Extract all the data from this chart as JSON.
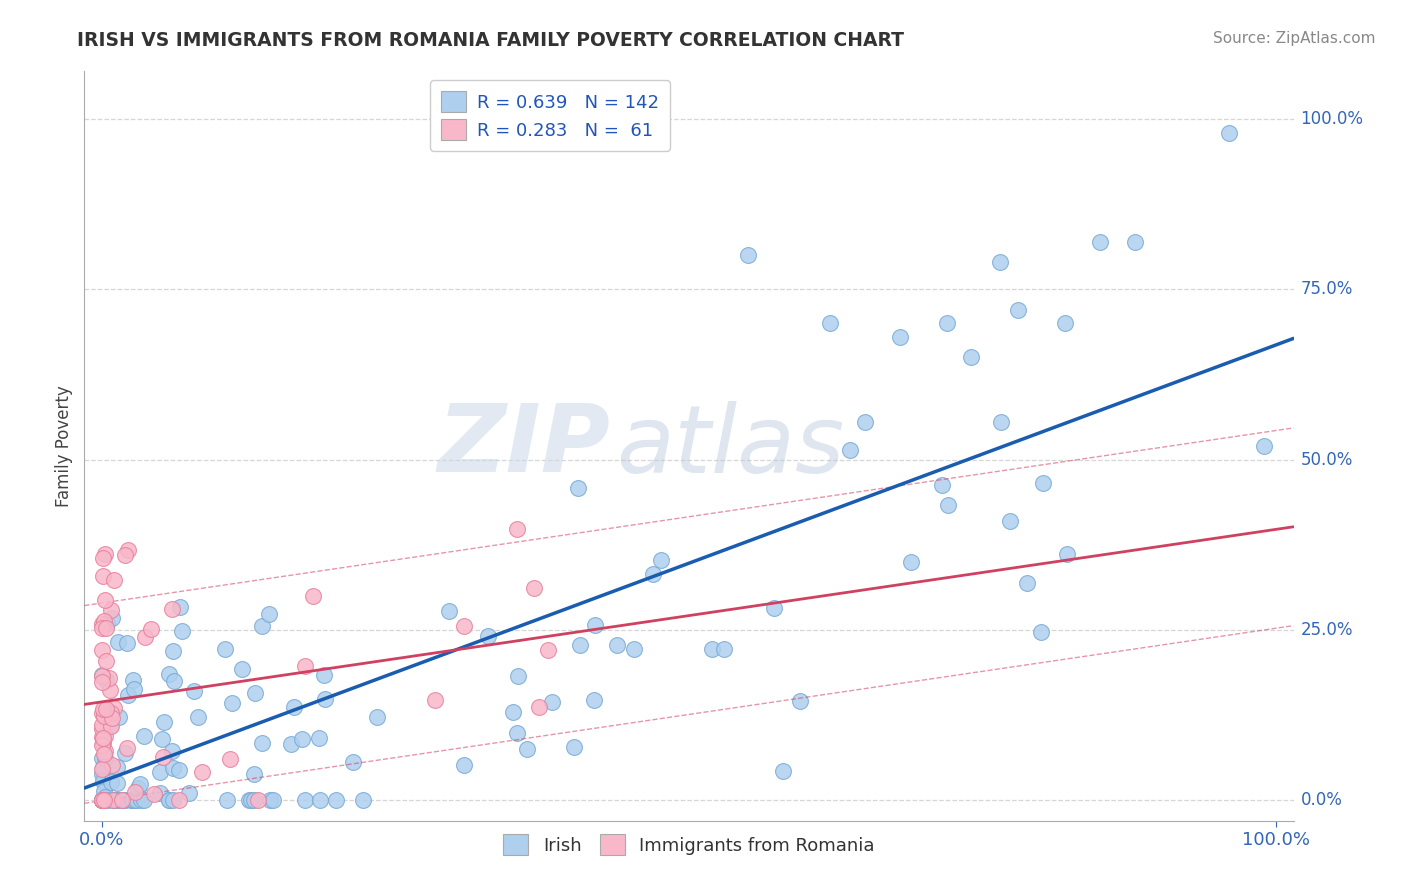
{
  "title": "IRISH VS IMMIGRANTS FROM ROMANIA FAMILY POVERTY CORRELATION CHART",
  "source": "Source: ZipAtlas.com",
  "ylabel": "Family Poverty",
  "right_yticks": [
    "0.0%",
    "25.0%",
    "50.0%",
    "75.0%",
    "100.0%"
  ],
  "legend_label_irish": "Irish",
  "legend_label_romania": "Immigrants from Romania",
  "irish_color": "#aecfee",
  "irish_edge_color": "#78aad4",
  "romania_color": "#f8b8ca",
  "romania_edge_color": "#e8809a",
  "irish_line_color": "#1a5cb0",
  "romania_line_color": "#d04060",
  "watermark_zip": "ZIP",
  "watermark_atlas": "atlas",
  "background_color": "#ffffff"
}
